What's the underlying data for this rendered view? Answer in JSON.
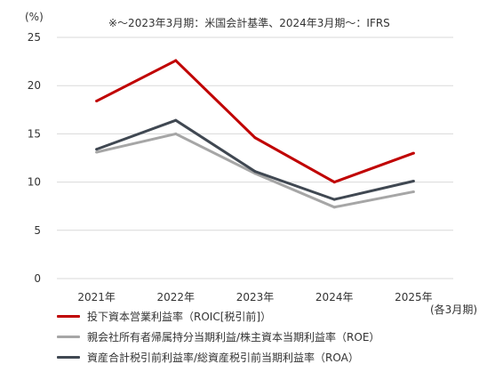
{
  "chart_data": {
    "type": "line",
    "note": "※～2023年3月期：米国会計基準、2024年3月期～：IFRS",
    "y_unit": "(%)",
    "x_unit": "(各3月期)",
    "categories": [
      "2021年",
      "2022年",
      "2023年",
      "2024年",
      "2025年"
    ],
    "yticks": [
      "0",
      "5",
      "10",
      "15",
      "20",
      "25"
    ],
    "ylim": [
      0,
      25
    ],
    "grid": true,
    "legend_position": "bottom-left",
    "series": [
      {
        "name": "投下資本営業利益率（ROIC[税引前]）",
        "color": "#c00000",
        "values": [
          18.4,
          22.6,
          14.6,
          10.0,
          13.0
        ]
      },
      {
        "name": "親会社所有者帰属持分当期利益/株主資本当期利益率（ROE）",
        "color": "#a6a6a6",
        "values": [
          13.1,
          15.0,
          10.9,
          7.4,
          9.0
        ]
      },
      {
        "name": "資産合計税引前利益率/総資産税引前当期利益率（ROA）",
        "color": "#404852",
        "values": [
          13.4,
          16.4,
          11.1,
          8.2,
          10.1
        ]
      }
    ]
  }
}
